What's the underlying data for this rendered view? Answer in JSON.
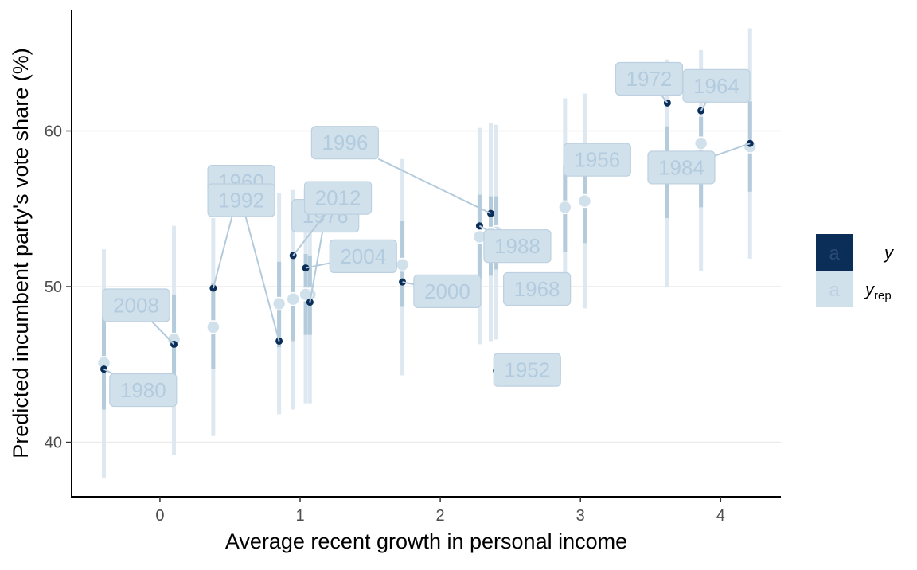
{
  "chart_data": {
    "type": "scatter",
    "xlabel": "Average recent growth in personal income",
    "ylabel": "Predicted incumbent party's vote share (%)",
    "xlim": [
      -0.63,
      4.43
    ],
    "ylim": [
      36.5,
      67.8
    ],
    "x_ticks": [
      0,
      1,
      2,
      3,
      4
    ],
    "y_ticks": [
      40,
      50,
      60
    ],
    "grid": "horizontal major gridlines",
    "legend": {
      "placement": "right",
      "entries": [
        {
          "key": "y",
          "glyph": "a",
          "label": "y",
          "subscript": "",
          "color": "#0b2e59"
        },
        {
          "key": "yrep",
          "glyph": "a",
          "label": "y",
          "subscript": "rep",
          "color": "#d1e1ec"
        }
      ]
    },
    "colors": {
      "observed": "#0b2e59",
      "predicted_point": "#d1e1ec",
      "interval_outer": "#dde8f1",
      "interval_inner": "#b4cbdc",
      "label_fill": "#d1e1ec",
      "label_text": "#b3cbde",
      "grid": "#ebebeb"
    },
    "series": [
      {
        "name": "y",
        "type": "observed"
      },
      {
        "name": "yrep",
        "type": "predicted median with 50% and 90% intervals"
      }
    ],
    "points": [
      {
        "year": "1952",
        "x": 2.4,
        "y": 44.6,
        "yrep": 53.5,
        "lo90": 46.6,
        "hi90": 60.4,
        "lo50": 51.1,
        "hi50": 55.8
      },
      {
        "year": "1956",
        "x": 3.03,
        "y": 57.8,
        "yrep": 55.5,
        "lo90": 48.6,
        "hi90": 62.4,
        "lo50": 52.8,
        "hi50": 58.0
      },
      {
        "year": "1960",
        "x": 0.38,
        "y": 49.9,
        "yrep": 47.4,
        "lo90": 40.4,
        "hi90": 54.4,
        "lo50": 44.7,
        "hi50": 50.2
      },
      {
        "year": "1964",
        "x": 3.86,
        "y": 61.3,
        "yrep": 59.2,
        "lo90": 51.0,
        "hi90": 65.2,
        "lo50": 55.1,
        "hi50": 60.9
      },
      {
        "year": "1968",
        "x": 2.89,
        "y": 49.6,
        "yrep": 55.1,
        "lo90": 49.3,
        "hi90": 62.1,
        "lo50": 52.2,
        "hi50": 57.8
      },
      {
        "year": "1972",
        "x": 3.62,
        "y": 61.8,
        "yrep": 57.9,
        "lo90": 50.0,
        "hi90": 64.6,
        "lo50": 54.4,
        "hi50": 60.3
      },
      {
        "year": "1976",
        "x": 1.07,
        "y": 49.0,
        "yrep": 49.5,
        "lo90": 42.5,
        "hi90": 56.2,
        "lo50": 46.9,
        "hi50": 52.0
      },
      {
        "year": "1980",
        "x": -0.4,
        "y": 44.7,
        "yrep": 45.1,
        "lo90": 37.7,
        "hi90": 52.4,
        "lo50": 42.1,
        "hi50": 48.1
      },
      {
        "year": "1984",
        "x": 4.21,
        "y": 59.2,
        "yrep": 59.0,
        "lo90": 51.8,
        "hi90": 66.6,
        "lo50": 56.1,
        "hi50": 61.9
      },
      {
        "year": "1988",
        "x": 2.28,
        "y": 53.9,
        "yrep": 53.2,
        "lo90": 46.3,
        "hi90": 60.2,
        "lo50": 50.5,
        "hi50": 55.9
      },
      {
        "year": "1992",
        "x": 0.85,
        "y": 46.5,
        "yrep": 48.9,
        "lo90": 41.8,
        "hi90": 56.0,
        "lo50": 46.1,
        "hi50": 51.6
      },
      {
        "year": "1996",
        "x": 2.36,
        "y": 54.7,
        "yrep": 53.4,
        "lo90": 46.5,
        "hi90": 60.5,
        "lo50": 50.7,
        "hi50": 55.8
      },
      {
        "year": "2000",
        "x": 1.73,
        "y": 50.3,
        "yrep": 51.4,
        "lo90": 44.3,
        "hi90": 58.2,
        "lo50": 48.7,
        "hi50": 54.2
      },
      {
        "year": "2004",
        "x": 1.04,
        "y": 51.2,
        "yrep": 49.5,
        "lo90": 42.5,
        "hi90": 56.3,
        "lo50": 46.9,
        "hi50": 52.1
      },
      {
        "year": "2008",
        "x": 0.1,
        "y": 46.3,
        "yrep": 46.6,
        "lo90": 39.2,
        "hi90": 53.9,
        "lo50": 43.8,
        "hi50": 49.5
      },
      {
        "year": "2012",
        "x": 0.95,
        "y": 52.0,
        "yrep": 49.2,
        "lo90": 42.1,
        "hi90": 56.2,
        "lo50": 46.5,
        "hi50": 51.8
      }
    ],
    "labels": [
      {
        "year": "1952",
        "x": 2.62,
        "y": 44.65
      },
      {
        "year": "1956",
        "x": 3.12,
        "y": 58.15
      },
      {
        "year": "1960",
        "x": 0.58,
        "y": 56.75
      },
      {
        "year": "1964",
        "x": 3.97,
        "y": 62.9
      },
      {
        "year": "1968",
        "x": 2.69,
        "y": 49.85
      },
      {
        "year": "1972",
        "x": 3.49,
        "y": 63.35
      },
      {
        "year": "1976",
        "x": 1.18,
        "y": 54.55
      },
      {
        "year": "1980",
        "x": -0.12,
        "y": 43.35
      },
      {
        "year": "1984",
        "x": 3.72,
        "y": 57.65
      },
      {
        "year": "1988",
        "x": 2.55,
        "y": 52.6
      },
      {
        "year": "1992",
        "x": 0.58,
        "y": 55.55
      },
      {
        "year": "1996",
        "x": 1.32,
        "y": 59.25
      },
      {
        "year": "2000",
        "x": 2.05,
        "y": 49.7
      },
      {
        "year": "2004",
        "x": 1.45,
        "y": 51.95
      },
      {
        "year": "2008",
        "x": -0.17,
        "y": 48.8
      },
      {
        "year": "2012",
        "x": 1.27,
        "y": 55.7
      }
    ]
  }
}
